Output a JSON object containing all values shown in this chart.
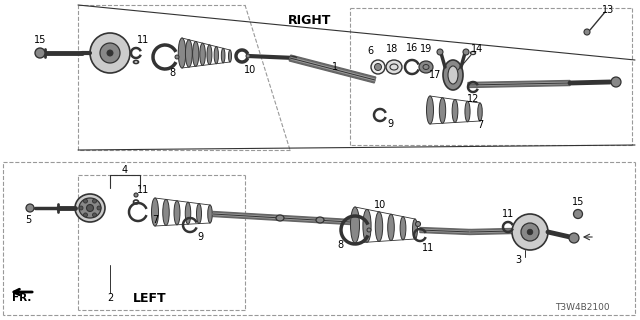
{
  "bg_color": "#ffffff",
  "diagram_code": "T3W4B2100",
  "right_label": "RIGHT",
  "left_label": "LEFT",
  "fr_label": "FR.",
  "line_color": "#222222",
  "gray_dark": "#333333",
  "gray_mid": "#888888",
  "gray_light": "#cccccc",
  "gray_fill": "#aaaaaa",
  "dash_color": "#999999"
}
